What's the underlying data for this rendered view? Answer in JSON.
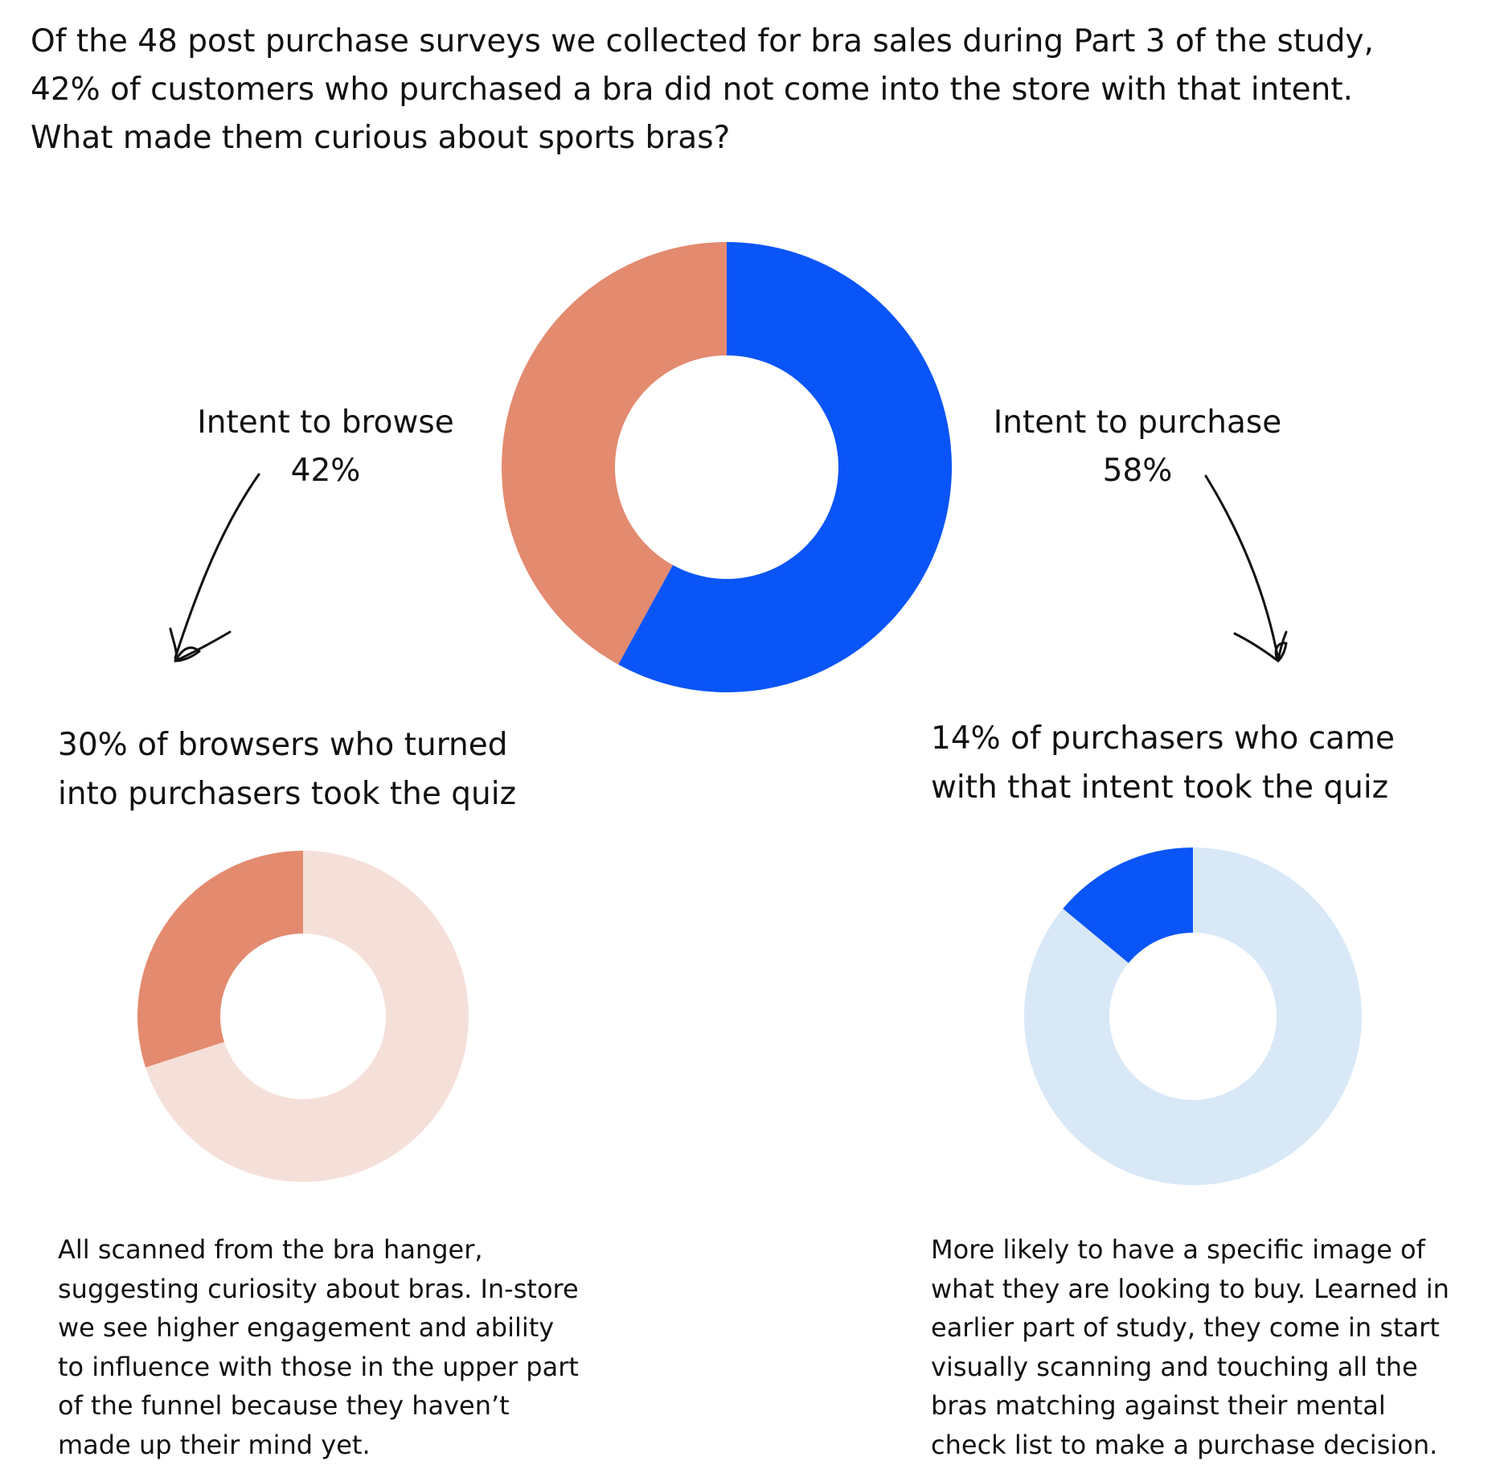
{
  "intro": {
    "lines": [
      "Of the 48 post purchase surveys we collected for bra sales during Part 3 of the study,",
      "42% of customers who purchased a bra did not come into the store with that intent.",
      "What made them curious about sports bras?"
    ]
  },
  "chart_data": [
    {
      "type": "pie",
      "variant": "donut",
      "slices": [
        {
          "label": "Intent to purchase",
          "value": 58,
          "display": "58%",
          "color": "#0a55f7"
        },
        {
          "label": "Intent to browse",
          "value": 42,
          "display": "42%",
          "color": "#e38a6f"
        }
      ]
    },
    {
      "type": "pie",
      "variant": "donut",
      "title_lines": [
        "30% of browsers who turned",
        "into purchasers took the quiz"
      ],
      "slices": [
        {
          "label": "",
          "value": 30,
          "color": "#e38a6f"
        },
        {
          "label": "",
          "value": 70,
          "color": "#f5e0d9"
        }
      ]
    },
    {
      "type": "pie",
      "variant": "donut",
      "title_lines": [
        "14% of purchasers who came",
        "with that intent took the quiz"
      ],
      "slices": [
        {
          "label": "",
          "value": 14,
          "color": "#0a55f7"
        },
        {
          "label": "",
          "value": 86,
          "color": "#d8e8f7"
        }
      ]
    }
  ],
  "notes": {
    "left": [
      "All scanned from the bra hanger,",
      "suggesting curiosity about bras. In-store",
      "we see higher engagement and ability",
      "to influence with those in the upper part",
      "of the funnel because they haven’t",
      "made up their mind yet."
    ],
    "right": [
      "More likely to have a specific image of",
      "what they are looking to buy. Learned in",
      "earlier part of study, they come in start",
      "visually scanning and touching all the",
      "bras matching against their mental",
      "check list to make a purchase decision."
    ]
  },
  "colors": {
    "blue": "#0a55f7",
    "coral": "#e38a6f",
    "light_coral": "#f5e0d9",
    "light_blue": "#d8e8f7"
  }
}
